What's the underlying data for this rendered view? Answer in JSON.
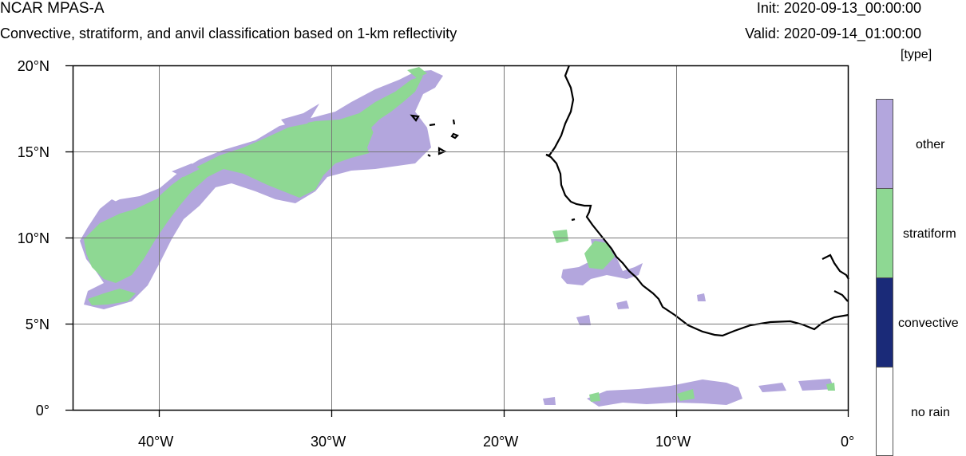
{
  "header": {
    "title": "NCAR MPAS-A",
    "subtitle": "Convective, stratiform, and anvil classification based on 1-km reflectivity",
    "init": "Init: 2020-09-13_00:00:00",
    "valid": "Valid: 2020-09-14_01:00:00"
  },
  "map": {
    "lat_range": [
      0,
      20
    ],
    "lon_range": [
      -45,
      0
    ],
    "lat_labels": [
      "20°N",
      "15°N",
      "10°N",
      "5°N",
      "0°"
    ],
    "lon_labels": [
      "40°W",
      "30°W",
      "20°W",
      "10°W",
      "0°"
    ],
    "colors": {
      "other": "#b3a6dd",
      "stratiform": "#8ed893",
      "convective": "#1a2a78",
      "no_rain": "#ffffff"
    }
  },
  "legend": {
    "units": "[type]",
    "items": [
      {
        "label": "other",
        "color": "#b3a6dd"
      },
      {
        "label": "stratiform",
        "color": "#8ed893"
      },
      {
        "label": "convective",
        "color": "#1a2a78"
      },
      {
        "label": "no rain",
        "color": "#ffffff"
      }
    ]
  }
}
